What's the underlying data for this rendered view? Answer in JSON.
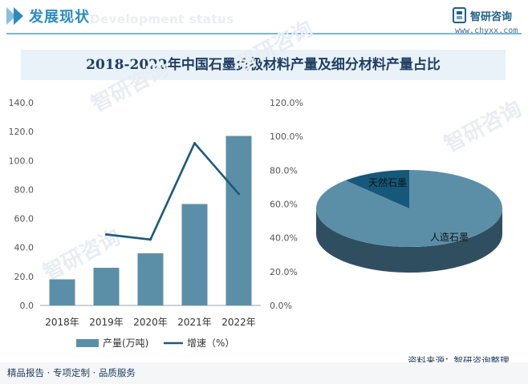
{
  "header": {
    "title": "发展现状",
    "subtitle": "Development status"
  },
  "brand": {
    "name": "智研咨询",
    "url": "www.chyxx.com",
    "watermark": "智研咨询"
  },
  "chart_title": "2018-2022年中国石墨负极材料产量及细分材料产量占比",
  "chart_data": [
    {
      "type": "bar+line",
      "categories": [
        "2018年",
        "2019年",
        "2020年",
        "2021年",
        "2022年"
      ],
      "series": [
        {
          "name": "产量(万吨)",
          "type": "bar",
          "axis": "left",
          "color": "#5b8fa8",
          "values": [
            18,
            26,
            36,
            70,
            117
          ]
        },
        {
          "name": "增速（%）",
          "type": "line",
          "axis": "right",
          "color": "#1b5a7a",
          "values": [
            null,
            42,
            39,
            96,
            66
          ]
        }
      ],
      "y_left": {
        "min": 0,
        "max": 140,
        "step": 20,
        "tick_labels": [
          "0.0",
          "20.0",
          "40.0",
          "60.0",
          "80.0",
          "100.0",
          "120.0",
          "140.0"
        ]
      },
      "y_right": {
        "min": 0,
        "max": 120,
        "step": 20,
        "tick_labels": [
          "0.0%",
          "20.0%",
          "40.0%",
          "60.0%",
          "80.0%",
          "100.0%",
          "120.0%"
        ]
      },
      "legend": [
        "产量(万吨)",
        "增速（%）"
      ]
    },
    {
      "type": "pie",
      "style": "3d",
      "labels": [
        "人造石墨",
        "天然石墨"
      ],
      "values": [
        88,
        12
      ],
      "colors": [
        "#5b8fa8",
        "#15587a"
      ]
    }
  ],
  "source": "资料来源：智研咨询整理",
  "footer": "精品报告 · 专项定制 · 品质服务",
  "colors": {
    "accent": "#2a8cc0",
    "bar": "#5b8fa8",
    "line": "#1b5a7a",
    "title": "#1f3f63"
  }
}
